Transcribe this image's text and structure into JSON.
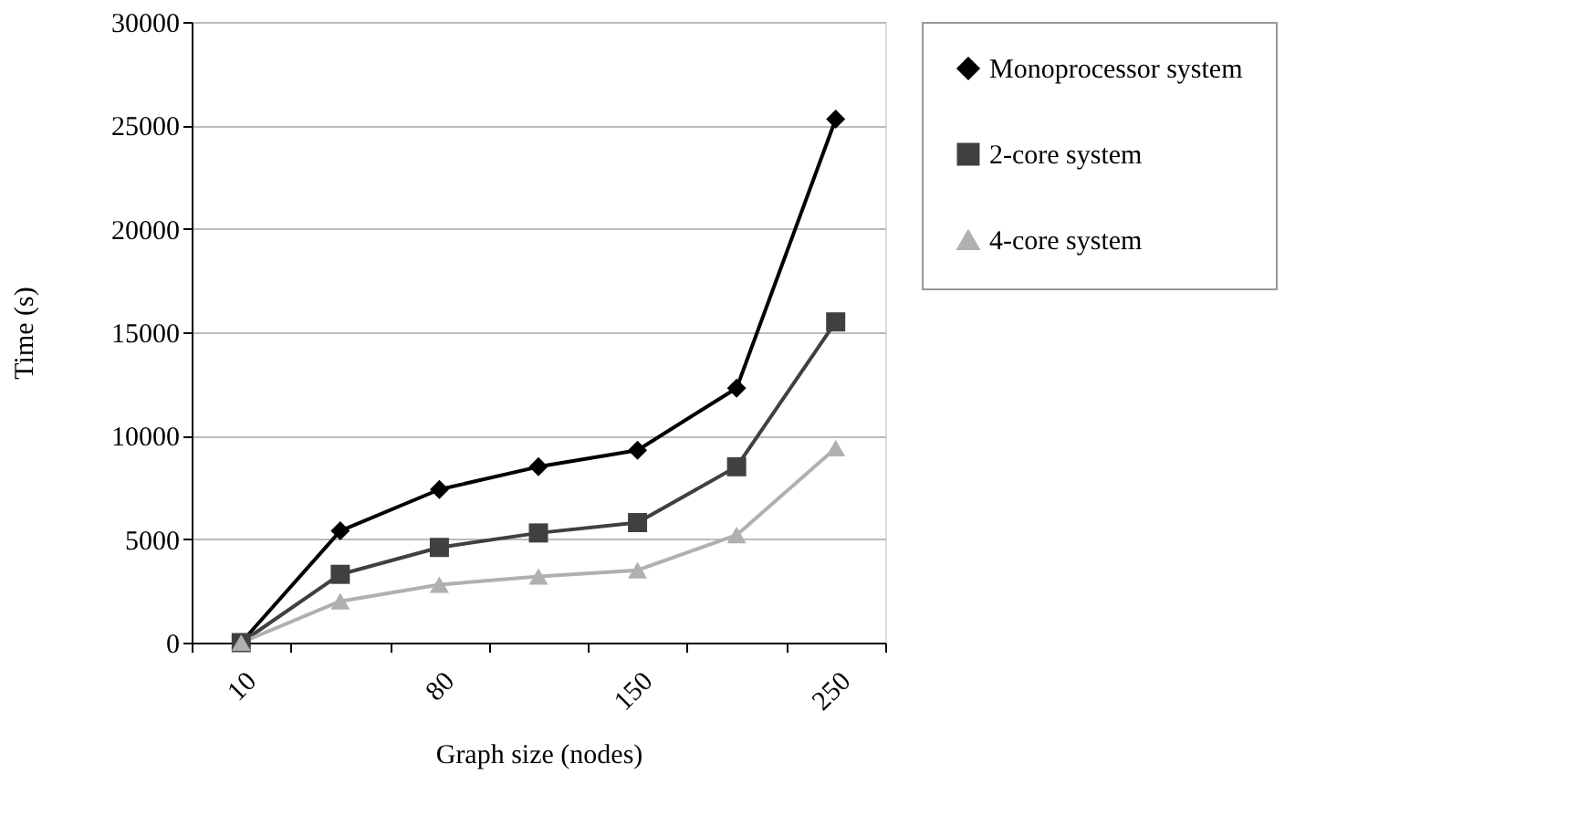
{
  "chart_data": {
    "type": "line",
    "xlabel": "Graph size (nodes)",
    "ylabel": "Time (s)",
    "categories": [
      "10",
      null,
      "80",
      null,
      "150",
      null,
      "250"
    ],
    "series": [
      {
        "name": "Monoprocessor system",
        "color": "#000000",
        "marker": "diamond",
        "values": [
          0,
          5400,
          7400,
          8500,
          9300,
          12300,
          25300
        ]
      },
      {
        "name": "2-core system",
        "color": "#404040",
        "marker": "square",
        "values": [
          0,
          3300,
          4600,
          5300,
          5800,
          8500,
          15500
        ]
      },
      {
        "name": "4-core system",
        "color": "#b0b0b0",
        "marker": "triangle",
        "values": [
          0,
          2000,
          2800,
          3200,
          3500,
          5200,
          9400
        ]
      }
    ],
    "ylim": [
      0,
      30000
    ],
    "yticks": [
      0,
      5000,
      10000,
      15000,
      20000,
      25000,
      30000
    ],
    "grid": "y",
    "legend": "right",
    "line_style": "solid"
  }
}
